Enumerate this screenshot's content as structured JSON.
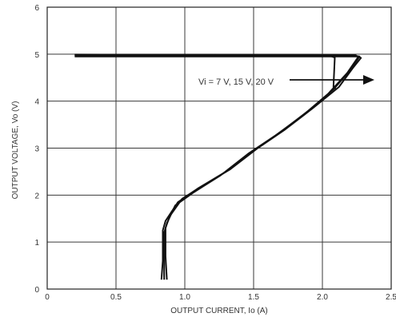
{
  "chart_data": {
    "type": "line",
    "xlabel": "OUTPUT CURRENT, Io (A)",
    "ylabel": "OUTPUT VOLTAGE, Vo (V)",
    "xlim": [
      0,
      2.5
    ],
    "ylim": [
      0,
      6
    ],
    "x_ticks": [
      0,
      0.5,
      1.0,
      1.5,
      2.0,
      2.5
    ],
    "x_tick_labels": [
      "0",
      "0.5",
      "1.0",
      "1.5",
      "2.0",
      "2.5"
    ],
    "y_ticks": [
      0,
      1,
      2,
      3,
      4,
      5,
      6
    ],
    "y_tick_labels": [
      "0",
      "1",
      "2",
      "3",
      "4",
      "5",
      "6"
    ],
    "grid": true,
    "annotation": "Vi = 7 V, 15 V, 20 V",
    "series": [
      {
        "x": [
          0.2,
          2.06,
          2.09,
          2.08,
          2.09,
          2.1
        ],
        "y": [
          4.97,
          4.96,
          4.93,
          4.3,
          4.28,
          4.25
        ]
      },
      {
        "x": [
          0.2,
          2.22,
          2.27,
          2.2,
          2.08,
          1.9,
          1.7,
          1.5,
          1.3,
          1.1,
          0.95,
          0.86,
          0.84,
          0.84,
          0.83
        ],
        "y": [
          4.98,
          4.97,
          4.95,
          4.65,
          4.25,
          3.8,
          3.35,
          2.95,
          2.5,
          2.15,
          1.85,
          1.45,
          1.25,
          0.6,
          0.2
        ]
      },
      {
        "x": [
          0.2,
          2.26,
          2.28,
          2.22,
          2.12,
          1.93,
          1.73,
          1.53,
          1.33,
          1.13,
          0.98,
          0.89,
          0.86,
          0.86,
          0.87
        ],
        "y": [
          4.95,
          4.95,
          4.92,
          4.7,
          4.3,
          3.85,
          3.4,
          3.0,
          2.55,
          2.2,
          1.92,
          1.55,
          1.3,
          0.7,
          0.2
        ]
      },
      {
        "x": [
          0.2,
          2.24,
          2.26,
          2.18,
          2.04,
          1.86,
          1.66,
          1.46,
          1.26,
          1.06,
          0.93,
          0.87,
          0.85,
          0.85,
          0.85
        ],
        "y": [
          4.99,
          4.98,
          4.94,
          4.6,
          4.15,
          3.7,
          3.27,
          2.88,
          2.42,
          2.05,
          1.78,
          1.4,
          1.2,
          0.65,
          0.2
        ]
      }
    ]
  }
}
